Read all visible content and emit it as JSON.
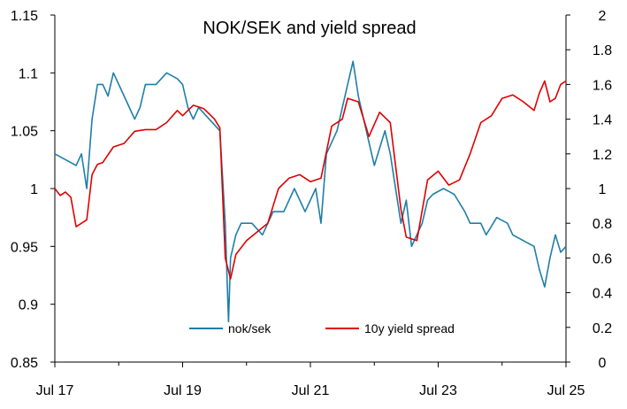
{
  "chart_data": {
    "type": "line",
    "title": "NOK/SEK and yield spread",
    "x_tick_labels": [
      "Jul 17",
      "Jul 19",
      "Jul 21",
      "Jul 23",
      "Jul 25"
    ],
    "x_range": [
      "2017-07",
      "2025-07"
    ],
    "y_left": {
      "ticks": [
        "0.85",
        "0.9",
        "0.95",
        "1",
        "1.05",
        "1.1",
        "1.15"
      ],
      "range": [
        0.85,
        1.15
      ]
    },
    "y_right": {
      "ticks": [
        "0",
        "0.2",
        "0.4",
        "0.6",
        "0.8",
        "1",
        "1.2",
        "1.4",
        "1.6",
        "1.8",
        "2"
      ],
      "range": [
        0,
        2
      ]
    },
    "grid": false,
    "legend_position": "bottom-center",
    "series": [
      {
        "name": "nok/sek",
        "axis": "left",
        "color": "#1f7ea8",
        "points": [
          [
            "2017-07",
            1.03
          ],
          [
            "2017-09",
            1.025
          ],
          [
            "2017-11",
            1.02
          ],
          [
            "2017-12",
            1.03
          ],
          [
            "2018-01",
            1.0
          ],
          [
            "2018-02",
            1.06
          ],
          [
            "2018-03",
            1.09
          ],
          [
            "2018-04",
            1.09
          ],
          [
            "2018-05",
            1.08
          ],
          [
            "2018-06",
            1.1
          ],
          [
            "2018-07",
            1.09
          ],
          [
            "2018-09",
            1.07
          ],
          [
            "2018-10",
            1.06
          ],
          [
            "2018-11",
            1.07
          ],
          [
            "2018-12",
            1.09
          ],
          [
            "2019-02",
            1.09
          ],
          [
            "2019-04",
            1.1
          ],
          [
            "2019-06",
            1.095
          ],
          [
            "2019-07",
            1.09
          ],
          [
            "2019-08",
            1.07
          ],
          [
            "2019-09",
            1.06
          ],
          [
            "2019-10",
            1.07
          ],
          [
            "2019-12",
            1.06
          ],
          [
            "2020-02",
            1.05
          ],
          [
            "2020-03",
            0.97
          ],
          [
            "2020-03-20",
            0.885
          ],
          [
            "2020-04",
            0.94
          ],
          [
            "2020-05",
            0.96
          ],
          [
            "2020-06",
            0.97
          ],
          [
            "2020-08",
            0.97
          ],
          [
            "2020-10",
            0.96
          ],
          [
            "2020-12",
            0.98
          ],
          [
            "2021-02",
            0.98
          ],
          [
            "2021-04",
            1.0
          ],
          [
            "2021-06",
            0.98
          ],
          [
            "2021-08",
            1.0
          ],
          [
            "2021-09",
            0.97
          ],
          [
            "2021-10",
            1.03
          ],
          [
            "2021-12",
            1.05
          ],
          [
            "2022-02",
            1.09
          ],
          [
            "2022-03",
            1.11
          ],
          [
            "2022-04",
            1.08
          ],
          [
            "2022-06",
            1.04
          ],
          [
            "2022-07",
            1.02
          ],
          [
            "2022-09",
            1.05
          ],
          [
            "2022-10",
            1.03
          ],
          [
            "2022-11",
            1.0
          ],
          [
            "2022-12",
            0.97
          ],
          [
            "2023-01",
            0.99
          ],
          [
            "2023-02",
            0.95
          ],
          [
            "2023-04",
            0.97
          ],
          [
            "2023-05",
            0.99
          ],
          [
            "2023-06",
            0.995
          ],
          [
            "2023-08",
            1.0
          ],
          [
            "2023-10",
            0.995
          ],
          [
            "2023-12",
            0.98
          ],
          [
            "2024-01",
            0.97
          ],
          [
            "2024-03",
            0.97
          ],
          [
            "2024-04",
            0.96
          ],
          [
            "2024-06",
            0.975
          ],
          [
            "2024-08",
            0.97
          ],
          [
            "2024-09",
            0.96
          ],
          [
            "2024-11",
            0.955
          ],
          [
            "2025-01",
            0.95
          ],
          [
            "2025-02",
            0.93
          ],
          [
            "2025-03",
            0.915
          ],
          [
            "2025-04",
            0.94
          ],
          [
            "2025-05",
            0.96
          ],
          [
            "2025-06",
            0.945
          ],
          [
            "2025-07",
            0.95
          ]
        ]
      },
      {
        "name": "10y yield spread",
        "axis": "right",
        "color": "#e00000",
        "points": [
          [
            "2017-07",
            1.0
          ],
          [
            "2017-08",
            0.96
          ],
          [
            "2017-09",
            0.98
          ],
          [
            "2017-10",
            0.95
          ],
          [
            "2017-11",
            0.78
          ],
          [
            "2017-12",
            0.8
          ],
          [
            "2018-01",
            0.82
          ],
          [
            "2018-02",
            1.08
          ],
          [
            "2018-03",
            1.14
          ],
          [
            "2018-04",
            1.15
          ],
          [
            "2018-06",
            1.24
          ],
          [
            "2018-08",
            1.26
          ],
          [
            "2018-10",
            1.33
          ],
          [
            "2018-12",
            1.34
          ],
          [
            "2019-02",
            1.34
          ],
          [
            "2019-04",
            1.38
          ],
          [
            "2019-06",
            1.45
          ],
          [
            "2019-07",
            1.42
          ],
          [
            "2019-09",
            1.48
          ],
          [
            "2019-11",
            1.46
          ],
          [
            "2020-01",
            1.4
          ],
          [
            "2020-02",
            1.35
          ],
          [
            "2020-03",
            0.6
          ],
          [
            "2020-04",
            0.48
          ],
          [
            "2020-05",
            0.62
          ],
          [
            "2020-07",
            0.7
          ],
          [
            "2020-09",
            0.75
          ],
          [
            "2020-11",
            0.8
          ],
          [
            "2021-01",
            1.0
          ],
          [
            "2021-03",
            1.06
          ],
          [
            "2021-05",
            1.08
          ],
          [
            "2021-07",
            1.04
          ],
          [
            "2021-09",
            1.06
          ],
          [
            "2021-11",
            1.36
          ],
          [
            "2022-01",
            1.4
          ],
          [
            "2022-02",
            1.52
          ],
          [
            "2022-04",
            1.5
          ],
          [
            "2022-06",
            1.3
          ],
          [
            "2022-08",
            1.44
          ],
          [
            "2022-10",
            1.38
          ],
          [
            "2022-12",
            0.88
          ],
          [
            "2023-01",
            0.72
          ],
          [
            "2023-03",
            0.7
          ],
          [
            "2023-05",
            1.05
          ],
          [
            "2023-07",
            1.1
          ],
          [
            "2023-09",
            1.02
          ],
          [
            "2023-11",
            1.05
          ],
          [
            "2024-01",
            1.2
          ],
          [
            "2024-03",
            1.38
          ],
          [
            "2024-05",
            1.42
          ],
          [
            "2024-07",
            1.52
          ],
          [
            "2024-09",
            1.54
          ],
          [
            "2024-11",
            1.5
          ],
          [
            "2025-01",
            1.45
          ],
          [
            "2025-02",
            1.55
          ],
          [
            "2025-03",
            1.62
          ],
          [
            "2025-04",
            1.5
          ],
          [
            "2025-05",
            1.52
          ],
          [
            "2025-06",
            1.6
          ],
          [
            "2025-07",
            1.62
          ]
        ]
      }
    ]
  }
}
